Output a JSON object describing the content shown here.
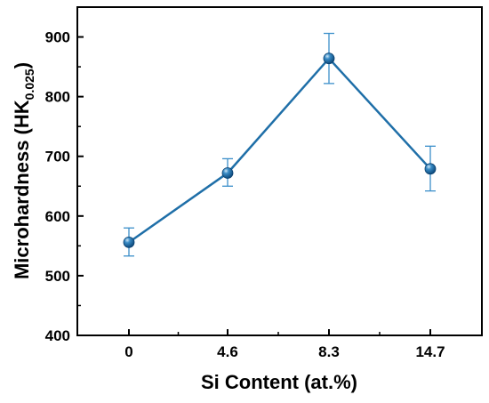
{
  "chart_data": {
    "type": "line",
    "title": "",
    "categories": [
      "0",
      "4.6",
      "8.3",
      "14.7"
    ],
    "series": [
      {
        "values": [
          556,
          672,
          864,
          679
        ],
        "error_upper": [
          580,
          696,
          906,
          717
        ],
        "error_lower": [
          533,
          650,
          822,
          642
        ],
        "color": "#1f6fa8"
      }
    ],
    "xlabel": "Si Content (at.%)",
    "ylabel_main": "Microhardness (HK",
    "ylabel_sub": "0.025",
    "ylabel_close": ")",
    "ylim": [
      400,
      950
    ],
    "yticks": [
      400,
      500,
      600,
      700,
      800,
      900
    ],
    "grid": false,
    "legend": "none"
  }
}
